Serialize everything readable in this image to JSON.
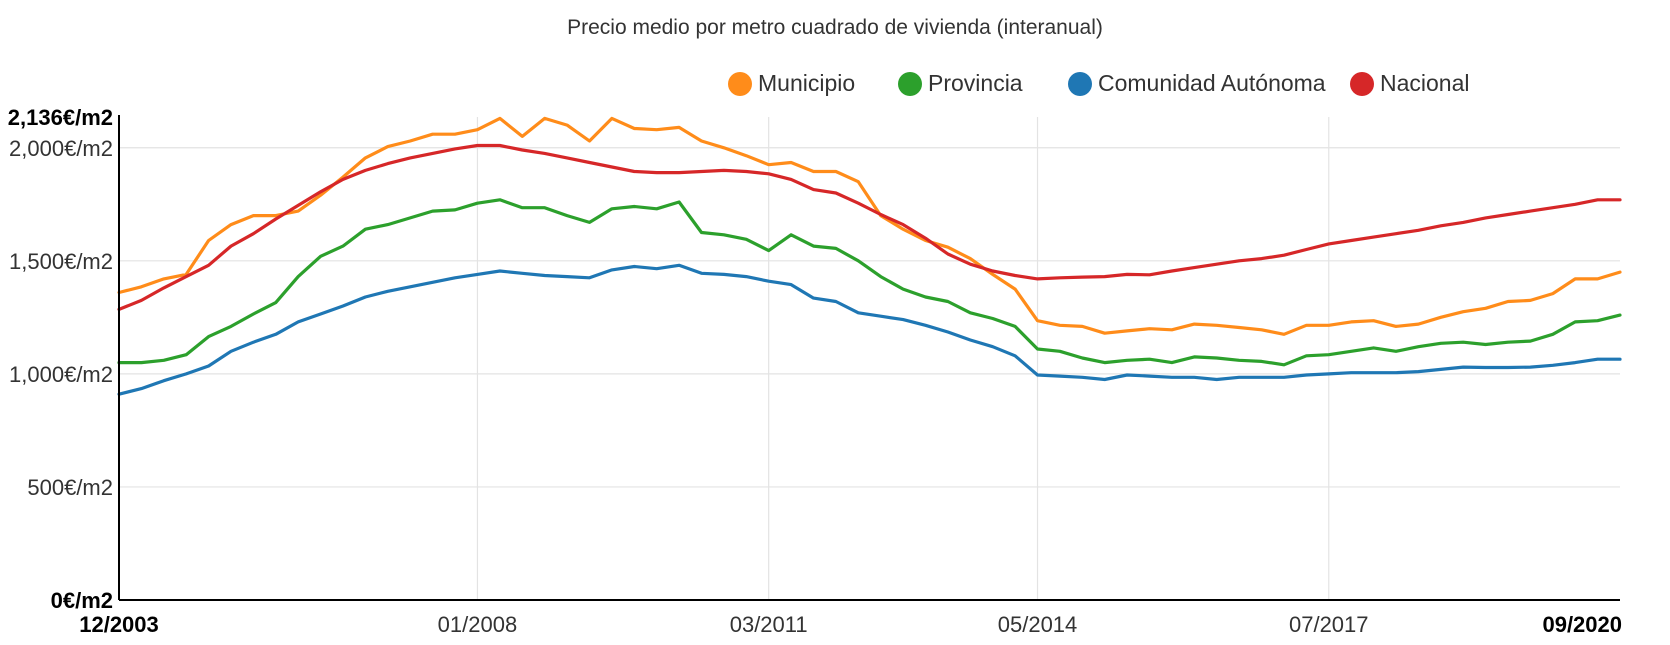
{
  "chart_data": {
    "type": "line",
    "title": "Precio medio por metro cuadrado de vivienda (interanual)",
    "xlabel": "",
    "ylabel": "",
    "ylim": [
      0,
      2136
    ],
    "grid": true,
    "legend_position": "top-right",
    "y_ticks": [
      {
        "value": 0,
        "label": "0€/m2",
        "bold": true
      },
      {
        "value": 500,
        "label": "500€/m2",
        "bold": false
      },
      {
        "value": 1000,
        "label": "1,000€/m2",
        "bold": false
      },
      {
        "value": 1500,
        "label": "1,500€/m2",
        "bold": false
      },
      {
        "value": 2000,
        "label": "2,000€/m2",
        "bold": false
      },
      {
        "value": 2136,
        "label": "2,136€/m2",
        "bold": true
      }
    ],
    "x_ticks": [
      {
        "index": 0,
        "label": "12/2003",
        "bold": true
      },
      {
        "index": 16,
        "label": "01/2008",
        "bold": false
      },
      {
        "index": 29,
        "label": "03/2011",
        "bold": false
      },
      {
        "index": 41,
        "label": "05/2014",
        "bold": false
      },
      {
        "index": 54,
        "label": "07/2017",
        "bold": false
      },
      {
        "index": 67,
        "label": "09/2020",
        "bold": true
      }
    ],
    "series": [
      {
        "name": "Municipio",
        "color": "#ff8c1a",
        "values": [
          1360,
          1385,
          1420,
          1440,
          1590,
          1660,
          1700,
          1700,
          1720,
          1790,
          1870,
          1955,
          2005,
          2030,
          2060,
          2060,
          2080,
          2130,
          2050,
          2130,
          2100,
          2030,
          2130,
          2085,
          2080,
          2090,
          2030,
          2000,
          1965,
          1925,
          1935,
          1895,
          1895,
          1850,
          1700,
          1640,
          1590,
          1560,
          1510,
          1440,
          1375,
          1235,
          1215,
          1210,
          1180,
          1190,
          1200,
          1195,
          1220,
          1215,
          1205,
          1195,
          1175,
          1215,
          1215,
          1230,
          1235,
          1210,
          1220,
          1250,
          1275,
          1290,
          1320,
          1325,
          1355,
          1420,
          1420,
          1450
        ]
      },
      {
        "name": "Provincia",
        "color": "#2ca02c",
        "values": [
          1050,
          1050,
          1060,
          1085,
          1165,
          1210,
          1265,
          1315,
          1430,
          1520,
          1565,
          1640,
          1660,
          1690,
          1720,
          1725,
          1755,
          1770,
          1735,
          1735,
          1700,
          1670,
          1730,
          1740,
          1730,
          1760,
          1625,
          1615,
          1595,
          1545,
          1615,
          1565,
          1555,
          1500,
          1430,
          1375,
          1340,
          1320,
          1270,
          1245,
          1210,
          1110,
          1100,
          1070,
          1050,
          1060,
          1065,
          1050,
          1075,
          1070,
          1060,
          1055,
          1040,
          1080,
          1085,
          1100,
          1115,
          1100,
          1120,
          1135,
          1140,
          1130,
          1140,
          1145,
          1175,
          1230,
          1235,
          1260
        ]
      },
      {
        "name": "Comunidad Autónoma",
        "color": "#1f77b4",
        "values": [
          910,
          935,
          970,
          1000,
          1035,
          1100,
          1140,
          1175,
          1230,
          1265,
          1300,
          1340,
          1365,
          1385,
          1405,
          1425,
          1440,
          1455,
          1445,
          1435,
          1430,
          1425,
          1460,
          1475,
          1465,
          1480,
          1445,
          1440,
          1430,
          1410,
          1395,
          1335,
          1320,
          1270,
          1255,
          1240,
          1215,
          1185,
          1150,
          1120,
          1080,
          995,
          990,
          985,
          975,
          995,
          990,
          985,
          985,
          975,
          985,
          985,
          985,
          995,
          1000,
          1005,
          1005,
          1005,
          1010,
          1020,
          1030,
          1028,
          1028,
          1030,
          1038,
          1050,
          1065,
          1065
        ]
      },
      {
        "name": "Nacional",
        "color": "#d62728",
        "values": [
          1285,
          1325,
          1380,
          1430,
          1480,
          1565,
          1620,
          1685,
          1745,
          1805,
          1860,
          1900,
          1930,
          1955,
          1975,
          1995,
          2010,
          2010,
          1990,
          1975,
          1955,
          1935,
          1915,
          1895,
          1890,
          1890,
          1895,
          1900,
          1895,
          1885,
          1860,
          1815,
          1800,
          1755,
          1705,
          1660,
          1600,
          1530,
          1485,
          1455,
          1435,
          1420,
          1425,
          1428,
          1430,
          1440,
          1438,
          1455,
          1470,
          1485,
          1500,
          1510,
          1525,
          1550,
          1575,
          1590,
          1605,
          1620,
          1635,
          1655,
          1670,
          1690,
          1705,
          1720,
          1735,
          1750,
          1770,
          1770
        ]
      }
    ]
  }
}
